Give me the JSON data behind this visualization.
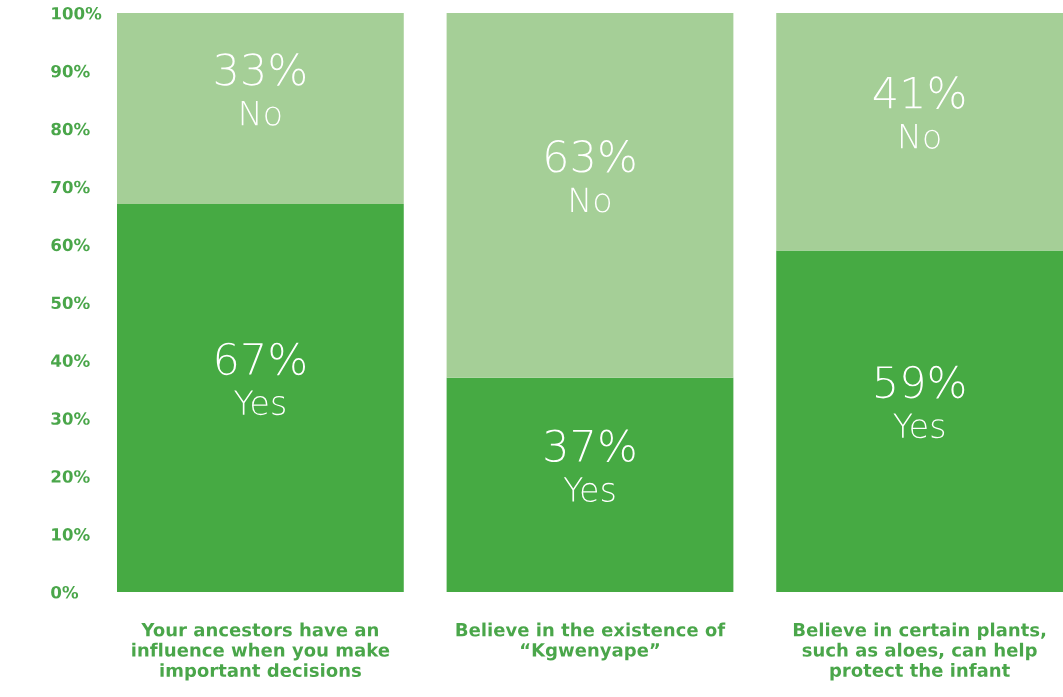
{
  "chart_data": {
    "type": "bar",
    "stacked": true,
    "categories": [
      "Your ancestors have an\ninfluence when you make\nimportant decisions",
      "Believe in the existence of\n“Kgwenyape”",
      "Believe in certain plants,\nsuch as aloes, can help\nprotect the infant"
    ],
    "series": [
      {
        "name": "Yes",
        "color": "#46aa43",
        "values": [
          67,
          37,
          59
        ],
        "value_labels": [
          "67%",
          "37%",
          "59%"
        ]
      },
      {
        "name": "No",
        "color": "#a5cf97",
        "values": [
          33,
          63,
          41
        ],
        "value_labels": [
          "33%",
          "63%",
          "41%"
        ]
      }
    ],
    "ylim": [
      0,
      100
    ],
    "yticks": [
      {
        "value": 0,
        "label": "0%"
      },
      {
        "value": 10,
        "label": "10%"
      },
      {
        "value": 20,
        "label": "20%"
      },
      {
        "value": 30,
        "label": "30%"
      },
      {
        "value": 40,
        "label": "40%"
      },
      {
        "value": 50,
        "label": "50%"
      },
      {
        "value": 60,
        "label": "60%"
      },
      {
        "value": 70,
        "label": "70%"
      },
      {
        "value": 80,
        "label": "80%"
      },
      {
        "value": 90,
        "label": "90%"
      },
      {
        "value": 100,
        "label": "100%"
      }
    ],
    "grid": false,
    "legend": false
  }
}
